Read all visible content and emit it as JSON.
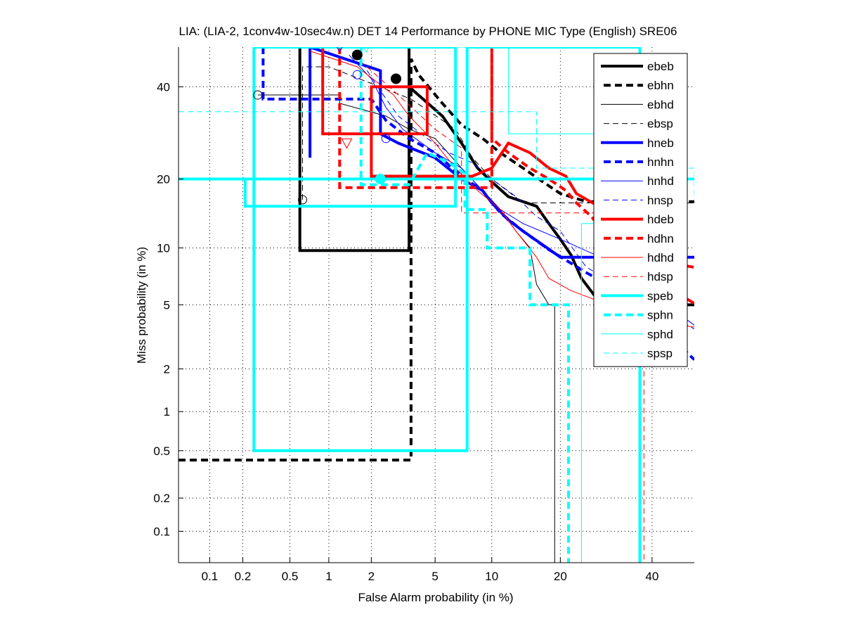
{
  "chart_data": {
    "type": "line",
    "subtype": "DET curve (normal-deviate scale)",
    "title": "LIA: (LIA-2, 1conv4w-10sec4w.n) DET 14 Performance by PHONE MIC Type (English) SRE06",
    "xlabel": "False Alarm probability (in %)",
    "ylabel": "Miss probability (in %)",
    "xscale": "probit",
    "yscale": "probit",
    "xlim": [
      0.05,
      50.7
    ],
    "ylim": [
      0.05,
      50
    ],
    "xticks": [
      0.1,
      0.2,
      0.5,
      1,
      2,
      5,
      10,
      20,
      40
    ],
    "xtick_labels": [
      "0.1",
      "0.2",
      "0.5",
      "1",
      "2",
      "5",
      "10",
      "20",
      "40"
    ],
    "yticks": [
      0.1,
      0.2,
      0.5,
      1,
      2,
      5,
      10,
      20,
      40
    ],
    "ytick_labels": [
      "0.1",
      "0.2",
      "0.5",
      "1",
      "2",
      "5",
      "10",
      "20",
      "40"
    ],
    "grid": true,
    "legend_position": "top-right",
    "series": [
      {
        "name": "ebeb",
        "color": "#000000",
        "style": "solid-thick",
        "points": [
          [
            0.6,
            50
          ],
          [
            0.6,
            9.7
          ],
          [
            3.5,
            9.7
          ],
          [
            3.5,
            50
          ],
          [
            3.5,
            40
          ],
          [
            5.5,
            33
          ],
          [
            7,
            27
          ],
          [
            8.5,
            22
          ],
          [
            10,
            19.5
          ],
          [
            12,
            17
          ],
          [
            16,
            15.5
          ],
          [
            18,
            13
          ],
          [
            20,
            11
          ],
          [
            22,
            9.2
          ],
          [
            24,
            7
          ],
          [
            27,
            5.5
          ],
          [
            32,
            5.5
          ],
          [
            40,
            5
          ],
          [
            50.7,
            5
          ]
        ]
      },
      {
        "name": "ebhn",
        "color": "#000000",
        "style": "dashed-thick",
        "points": [
          [
            0.05,
            0.42
          ],
          [
            3.6,
            0.42
          ],
          [
            3.6,
            47
          ],
          [
            4,
            43
          ],
          [
            5.5,
            36
          ],
          [
            7,
            31
          ],
          [
            9,
            28
          ],
          [
            11,
            25
          ],
          [
            14,
            22
          ],
          [
            17,
            19.5
          ],
          [
            20,
            17.5
          ],
          [
            25,
            16.2
          ],
          [
            50.7,
            16.2
          ]
        ]
      },
      {
        "name": "ebhd",
        "color": "#000000",
        "style": "solid-thin",
        "points": [
          [
            0.27,
            38
          ],
          [
            1.2,
            38
          ],
          [
            1.2,
            36
          ],
          [
            2.5,
            33
          ],
          [
            3.5,
            30
          ],
          [
            5,
            28
          ],
          [
            7,
            22
          ],
          [
            9,
            18
          ],
          [
            11,
            15
          ],
          [
            13,
            12
          ],
          [
            15,
            10
          ],
          [
            16,
            6.5
          ],
          [
            18,
            5
          ],
          [
            19,
            5
          ],
          [
            19,
            0.05
          ]
        ]
      },
      {
        "name": "ebsp",
        "color": "#000000",
        "style": "dashed-thin",
        "points": [
          [
            0.63,
            16.5
          ],
          [
            0.63,
            45
          ],
          [
            1,
            45
          ],
          [
            3.6,
            37
          ],
          [
            5.5,
            32
          ],
          [
            6.5,
            30
          ],
          [
            8,
            24
          ],
          [
            10,
            20
          ],
          [
            14,
            16
          ],
          [
            50.7,
            16
          ]
        ]
      },
      {
        "name": "hneb",
        "color": "#0000ff",
        "style": "solid-thick",
        "points": [
          [
            0.72,
            24
          ],
          [
            0.72,
            50
          ],
          [
            2.3,
            44
          ],
          [
            2.3,
            29
          ],
          [
            3,
            27
          ],
          [
            5,
            24
          ],
          [
            7,
            20
          ],
          [
            9,
            18
          ],
          [
            10,
            16
          ],
          [
            12,
            13.5
          ],
          [
            14,
            12
          ],
          [
            20,
            9
          ],
          [
            50.7,
            9
          ]
        ]
      },
      {
        "name": "hnhn",
        "color": "#0000ff",
        "style": "dashed-thick",
        "points": [
          [
            0.3,
            50
          ],
          [
            0.3,
            37
          ],
          [
            2,
            37
          ],
          [
            2.5,
            32
          ],
          [
            3.5,
            28
          ],
          [
            5,
            25
          ],
          [
            7,
            20.5
          ],
          [
            9,
            18
          ],
          [
            11,
            14.5
          ],
          [
            14,
            12
          ],
          [
            18,
            9.8
          ],
          [
            25,
            7.5
          ],
          [
            35,
            5.5
          ],
          [
            50.7,
            2.3
          ]
        ]
      },
      {
        "name": "hnhd",
        "color": "#0000ff",
        "style": "solid-thin",
        "points": [
          [
            1.4,
            48
          ],
          [
            2,
            42
          ],
          [
            2.5,
            35
          ],
          [
            3.2,
            30
          ],
          [
            5,
            25
          ],
          [
            7,
            22
          ],
          [
            9,
            18
          ],
          [
            11,
            15
          ],
          [
            14,
            13
          ],
          [
            20,
            11
          ],
          [
            28,
            9
          ],
          [
            50.7,
            3.8
          ]
        ]
      },
      {
        "name": "hnsp",
        "color": "#0000ff",
        "style": "dashed-thin",
        "points": [
          [
            1.6,
            48
          ],
          [
            2.2,
            40
          ],
          [
            3,
            33
          ],
          [
            4.5,
            28
          ],
          [
            6,
            25
          ],
          [
            8,
            23
          ],
          [
            10,
            20
          ],
          [
            13,
            17
          ],
          [
            16,
            14
          ],
          [
            20,
            12
          ],
          [
            25,
            8
          ],
          [
            50.7,
            3.6
          ]
        ]
      },
      {
        "name": "hdeb",
        "color": "#ff0000",
        "style": "solid-thick",
        "points": [
          [
            0.9,
            50
          ],
          [
            0.9,
            29
          ],
          [
            4.5,
            29
          ],
          [
            4.5,
            40
          ],
          [
            2,
            40
          ],
          [
            2,
            20.5
          ],
          [
            8,
            20.5
          ],
          [
            10,
            22
          ],
          [
            12,
            27
          ],
          [
            15,
            25
          ],
          [
            18,
            22
          ],
          [
            21,
            20.5
          ],
          [
            23,
            17.5
          ],
          [
            30,
            14.5
          ],
          [
            40,
            7
          ],
          [
            50.7,
            5.1
          ]
        ]
      },
      {
        "name": "hdhn",
        "color": "#ff0000",
        "style": "dashed-thick",
        "points": [
          [
            1.2,
            50
          ],
          [
            1.2,
            18.5
          ],
          [
            10,
            18.5
          ],
          [
            10,
            50
          ],
          [
            10,
            28
          ],
          [
            12,
            25
          ],
          [
            15,
            22
          ],
          [
            18,
            20
          ],
          [
            21,
            18
          ],
          [
            23,
            16
          ],
          [
            26,
            14
          ],
          [
            30,
            11
          ],
          [
            35,
            9
          ],
          [
            50.7,
            8
          ]
        ]
      },
      {
        "name": "hdhd",
        "color": "#ff0000",
        "style": "solid-thin",
        "points": [
          [
            0.72,
            49
          ],
          [
            1.6,
            45
          ],
          [
            2.8,
            38
          ],
          [
            3.5,
            33
          ],
          [
            4.2,
            30
          ],
          [
            5,
            27
          ],
          [
            6.5,
            22
          ],
          [
            8.5,
            18
          ],
          [
            11,
            15
          ],
          [
            13,
            12
          ],
          [
            16,
            9
          ],
          [
            18,
            7
          ],
          [
            22,
            6
          ],
          [
            40,
            4
          ],
          [
            50.7,
            3.7
          ]
        ]
      },
      {
        "name": "hdsp",
        "color": "#ff0000",
        "style": "dashed-thin",
        "points": [
          [
            1.5,
            48
          ],
          [
            2,
            44
          ],
          [
            3,
            38
          ],
          [
            5,
            30
          ],
          [
            7,
            26
          ],
          [
            7,
            14.5
          ],
          [
            20,
            14.5
          ],
          [
            38,
            14.5
          ],
          [
            38,
            0.05
          ]
        ]
      },
      {
        "name": "speb",
        "color": "#00ffff",
        "style": "solid-thick",
        "points": [
          [
            0.05,
            20
          ],
          [
            50.7,
            20
          ],
          [
            0.21,
            20
          ],
          [
            0.21,
            15.5
          ],
          [
            6.5,
            15.5
          ],
          [
            6.5,
            50
          ],
          [
            0.25,
            50
          ],
          [
            0.25,
            0.5
          ],
          [
            7.5,
            0.5
          ],
          [
            7.5,
            50
          ],
          [
            37,
            50
          ],
          [
            37,
            0.05
          ]
        ]
      },
      {
        "name": "sphn",
        "color": "#00ffff",
        "style": "dashed-thick",
        "points": [
          [
            1.7,
            50
          ],
          [
            1.7,
            19
          ],
          [
            3.5,
            19
          ],
          [
            4.5,
            25
          ],
          [
            6,
            23
          ],
          [
            7.3,
            21
          ],
          [
            7.3,
            15
          ],
          [
            9.5,
            15
          ],
          [
            9.5,
            10
          ],
          [
            15,
            10
          ],
          [
            15,
            5
          ],
          [
            21.5,
            5
          ],
          [
            21.5,
            0.05
          ]
        ]
      },
      {
        "name": "sphd",
        "color": "#00ffff",
        "style": "solid-thin",
        "points": [
          [
            1.2,
            50
          ],
          [
            12,
            50
          ],
          [
            12,
            29
          ],
          [
            30,
            29
          ],
          [
            30,
            13
          ],
          [
            24,
            13
          ],
          [
            24,
            0.05
          ]
        ]
      },
      {
        "name": "spsp",
        "color": "#00ffff",
        "style": "dashed-thin",
        "points": [
          [
            0.05,
            34
          ],
          [
            16,
            34
          ],
          [
            16,
            22
          ],
          [
            50.7,
            22
          ],
          [
            50.7,
            16.5
          ]
        ]
      }
    ],
    "markers": [
      {
        "series": "ebhd",
        "shape": "circle",
        "x": 0.27,
        "y": 38
      },
      {
        "series": "ebsp",
        "shape": "circle",
        "x": 0.63,
        "y": 16.5
      },
      {
        "series": "ebeb",
        "shape": "filled-circle",
        "x": 1.6,
        "y": 48
      },
      {
        "series": "ebhn",
        "shape": "filled-circle",
        "x": 2.9,
        "y": 42
      },
      {
        "series": "hneb",
        "shape": "circle",
        "x": 1.6,
        "y": 43
      },
      {
        "series": "hnhn",
        "shape": "circle",
        "x": 2.5,
        "y": 28
      },
      {
        "series": "hdhd",
        "shape": "triangle-down",
        "x": 1.35,
        "y": 27
      },
      {
        "series": "hnhd",
        "shape": "triangle-down",
        "x": 1.2,
        "y": 50
      },
      {
        "series": "sphd",
        "shape": "triangle-down",
        "x": 1.85,
        "y": 50
      },
      {
        "series": "speb",
        "shape": "filled-circle",
        "x": 2.3,
        "y": 20
      }
    ]
  }
}
